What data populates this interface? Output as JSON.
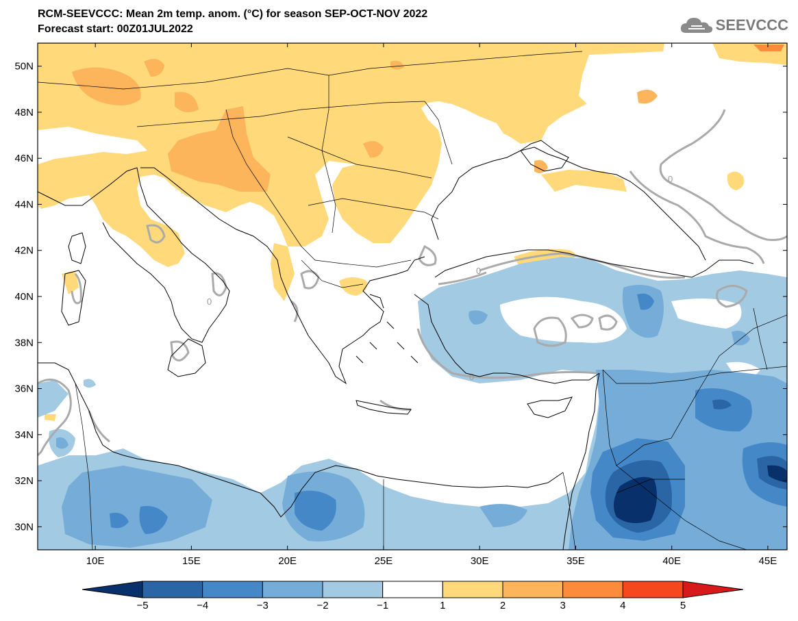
{
  "title_line1": "RCM-SEEVCCC: Mean 2m temp. anom. (°C) for season SEP-OCT-NOV 2022",
  "title_line2": "Forecast start: 00Z01JUL2022",
  "logo_text": "SEEVCCC",
  "map": {
    "lon_range": [
      7,
      46
    ],
    "lat_range": [
      29,
      51
    ],
    "lat_ticks": [
      "50N",
      "48N",
      "46N",
      "44N",
      "42N",
      "40N",
      "38N",
      "36N",
      "34N",
      "32N",
      "30N"
    ],
    "lon_ticks": [
      "10E",
      "15E",
      "20E",
      "25E",
      "30E",
      "35E",
      "40E",
      "45E"
    ],
    "contour_label": "0"
  },
  "colorbar": {
    "labels": [
      "−5",
      "−4",
      "−3",
      "−2",
      "−1",
      "1",
      "2",
      "3",
      "4",
      "5"
    ],
    "colors": [
      "#08306b",
      "#2a65a5",
      "#4488c8",
      "#75acd8",
      "#a2cae3",
      "#ffffff",
      "#ffd97a",
      "#fdb55c",
      "#fd8b3c",
      "#f5481f",
      "#d7191c"
    ]
  }
}
